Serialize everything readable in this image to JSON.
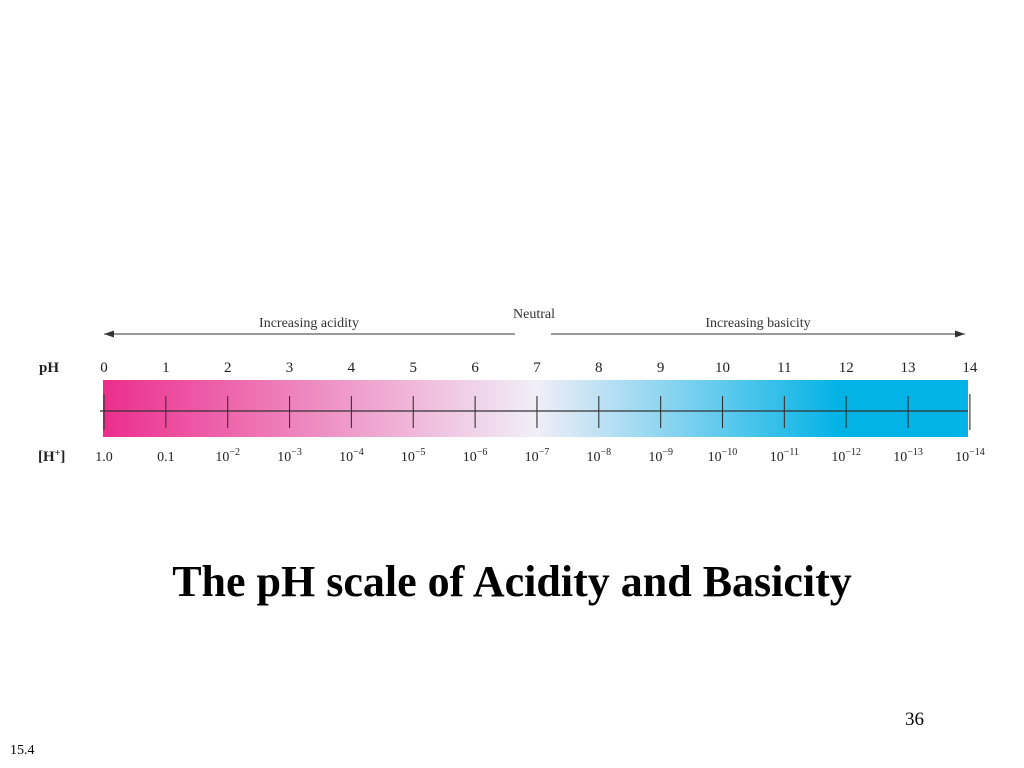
{
  "scale": {
    "acidity_label": "Increasing acidity",
    "neutral_label": "Neutral",
    "basicity_label": "Increasing basicity",
    "ph_row_label": "pH",
    "h_row_label": "[H+]",
    "ph_values": [
      "0",
      "1",
      "2",
      "3",
      "4",
      "5",
      "6",
      "7",
      "8",
      "9",
      "10",
      "11",
      "12",
      "13",
      "14"
    ],
    "h_concentrations": [
      {
        "base": "1.0",
        "exp": ""
      },
      {
        "base": "0.1",
        "exp": ""
      },
      {
        "base": "10",
        "exp": "−2"
      },
      {
        "base": "10",
        "exp": "−3"
      },
      {
        "base": "10",
        "exp": "−4"
      },
      {
        "base": "10",
        "exp": "−5"
      },
      {
        "base": "10",
        "exp": "−6"
      },
      {
        "base": "10",
        "exp": "−7"
      },
      {
        "base": "10",
        "exp": "−8"
      },
      {
        "base": "10",
        "exp": "−9"
      },
      {
        "base": "10",
        "exp": "−10"
      },
      {
        "base": "10",
        "exp": "−11"
      },
      {
        "base": "10",
        "exp": "−12"
      },
      {
        "base": "10",
        "exp": "−13"
      },
      {
        "base": "10",
        "exp": "−14"
      }
    ],
    "colors": {
      "acid": "#ec2e8e",
      "neutral": "#f1eef8",
      "base": "#04b3e6"
    }
  },
  "slide": {
    "title": "The pH scale of Acidity and Basicity",
    "page_number": "36",
    "section_number": "15.4"
  }
}
